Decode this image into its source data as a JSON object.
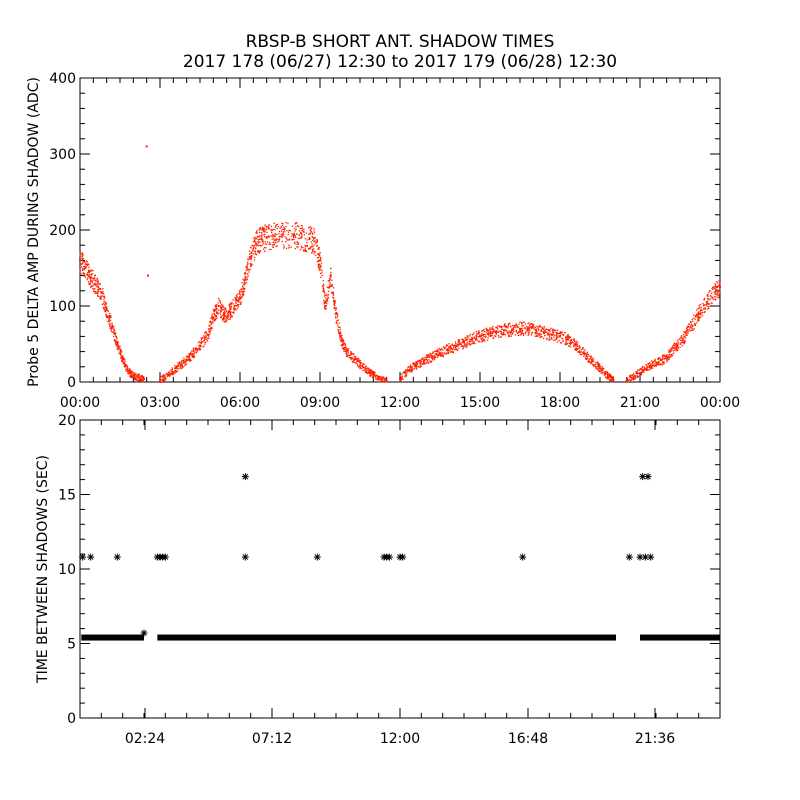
{
  "title": "RBSP-B SHORT ANT. SHADOW TIMES",
  "subtitle": "2017 178 (06/27) 12:30 to 2017 179 (06/28) 12:30",
  "colors": {
    "amp": "#ff2200",
    "spacing": "#000000"
  },
  "chart_data": [
    {
      "type": "scatter",
      "ylabel": "Probe 5 DELTA AMP DURING SHADOW (ADC)",
      "xlim": [
        0,
        24
      ],
      "ylim": [
        0,
        400
      ],
      "yticks": [
        0,
        100,
        200,
        300,
        400
      ],
      "xtick_labels": [
        "00:00",
        "03:00",
        "06:00",
        "09:00",
        "12:00",
        "15:00",
        "18:00",
        "21:00",
        "00:00"
      ],
      "grid": false,
      "series": [
        {
          "marker": "dot",
          "values": [
            [
              0.0,
              160
            ],
            [
              0.2,
              150
            ],
            [
              0.4,
              138
            ],
            [
              0.6,
              128
            ],
            [
              0.8,
              118
            ],
            [
              1.0,
              95
            ],
            [
              1.2,
              72
            ],
            [
              1.4,
              50
            ],
            [
              1.6,
              30
            ],
            [
              1.8,
              14
            ],
            [
              2.0,
              8
            ],
            [
              2.2,
              6
            ],
            [
              2.4,
              4
            ],
            [
              2.5,
              310
            ],
            [
              2.55,
              140
            ],
            [
              3.0,
              2
            ],
            [
              3.3,
              10
            ],
            [
              3.6,
              18
            ],
            [
              3.9,
              26
            ],
            [
              4.2,
              36
            ],
            [
              4.5,
              48
            ],
            [
              4.8,
              62
            ],
            [
              5.0,
              85
            ],
            [
              5.2,
              100
            ],
            [
              5.4,
              88
            ],
            [
              5.6,
              92
            ],
            [
              5.8,
              100
            ],
            [
              6.0,
              110
            ],
            [
              6.2,
              135
            ],
            [
              6.4,
              165
            ],
            [
              6.6,
              182
            ],
            [
              6.8,
              188
            ],
            [
              7.0,
              190
            ],
            [
              7.3,
              192
            ],
            [
              7.6,
              193
            ],
            [
              8.0,
              194
            ],
            [
              8.3,
              190
            ],
            [
              8.6,
              188
            ],
            [
              8.8,
              185
            ],
            [
              9.0,
              160
            ],
            [
              9.2,
              100
            ],
            [
              9.4,
              140
            ],
            [
              9.6,
              90
            ],
            [
              9.8,
              55
            ],
            [
              10.0,
              40
            ],
            [
              10.3,
              30
            ],
            [
              10.6,
              20
            ],
            [
              10.9,
              12
            ],
            [
              11.2,
              5
            ],
            [
              11.5,
              1
            ],
            [
              12.0,
              4
            ],
            [
              12.3,
              15
            ],
            [
              12.6,
              22
            ],
            [
              12.9,
              28
            ],
            [
              13.2,
              33
            ],
            [
              13.5,
              38
            ],
            [
              13.8,
              43
            ],
            [
              14.1,
              47
            ],
            [
              14.4,
              52
            ],
            [
              14.7,
              56
            ],
            [
              15.0,
              60
            ],
            [
              15.3,
              63
            ],
            [
              15.6,
              66
            ],
            [
              15.9,
              68
            ],
            [
              16.2,
              69
            ],
            [
              16.5,
              70
            ],
            [
              16.8,
              70
            ],
            [
              17.1,
              68
            ],
            [
              17.4,
              65
            ],
            [
              17.7,
              62
            ],
            [
              18.0,
              60
            ],
            [
              18.3,
              56
            ],
            [
              18.6,
              48
            ],
            [
              18.9,
              38
            ],
            [
              19.2,
              28
            ],
            [
              19.5,
              18
            ],
            [
              19.8,
              8
            ],
            [
              20.0,
              3
            ],
            [
              20.5,
              2
            ],
            [
              20.8,
              8
            ],
            [
              21.1,
              16
            ],
            [
              21.4,
              22
            ],
            [
              21.7,
              26
            ],
            [
              22.0,
              32
            ],
            [
              22.3,
              45
            ],
            [
              22.6,
              55
            ],
            [
              22.9,
              72
            ],
            [
              23.2,
              90
            ],
            [
              23.5,
              105
            ],
            [
              23.8,
              118
            ],
            [
              24.0,
              125
            ]
          ]
        }
      ]
    },
    {
      "type": "scatter",
      "ylabel": "TIME BETWEEN SHADOWS (SEC)",
      "xlim": [
        0,
        24
      ],
      "ylim": [
        0,
        20
      ],
      "yticks": [
        0,
        5,
        10,
        15,
        20
      ],
      "xtick_labels": [
        "02:24",
        "07:12",
        "12:00",
        "16:48",
        "21:36"
      ],
      "grid": false,
      "series": [
        {
          "marker": "asterisk",
          "baseline": {
            "value": 5.4,
            "x_segments": [
              [
                0.05,
                2.4
              ],
              [
                2.9,
                20.1
              ],
              [
                21.0,
                24.0
              ]
            ]
          },
          "values": [
            [
              0.1,
              10.8
            ],
            [
              0.4,
              10.8
            ],
            [
              1.4,
              10.8
            ],
            [
              2.9,
              10.8
            ],
            [
              3.0,
              10.8
            ],
            [
              3.1,
              10.8
            ],
            [
              3.2,
              10.8
            ],
            [
              6.2,
              16.2
            ],
            [
              6.2,
              10.8
            ],
            [
              8.9,
              10.8
            ],
            [
              11.4,
              10.8
            ],
            [
              11.5,
              10.8
            ],
            [
              11.6,
              10.8
            ],
            [
              12.0,
              10.8
            ],
            [
              12.1,
              10.8
            ],
            [
              16.6,
              10.8
            ],
            [
              20.6,
              10.8
            ],
            [
              21.1,
              16.2
            ],
            [
              21.3,
              16.2
            ],
            [
              21.0,
              10.8
            ],
            [
              21.2,
              10.8
            ],
            [
              21.4,
              10.8
            ],
            [
              2.4,
              5.7
            ]
          ]
        }
      ]
    }
  ]
}
